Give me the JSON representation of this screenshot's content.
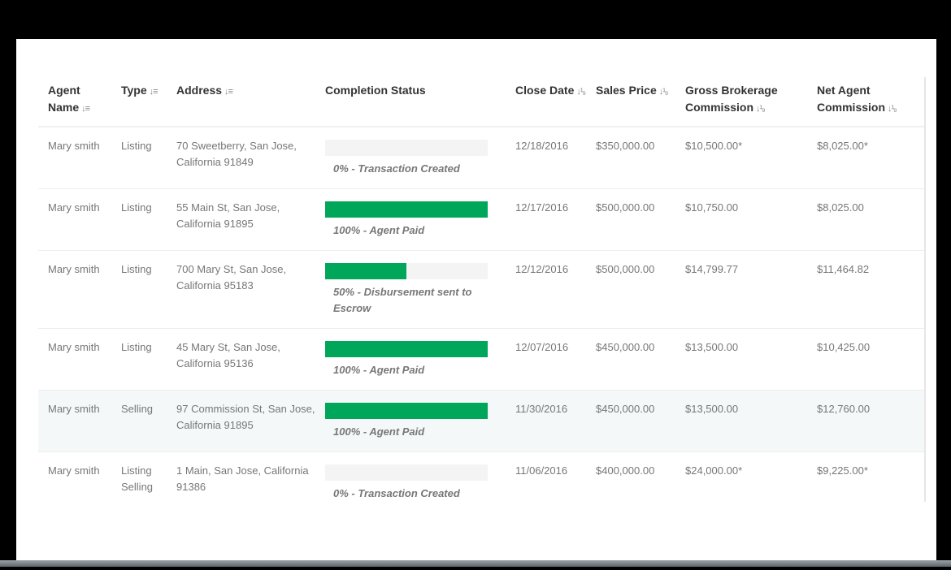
{
  "columns": [
    {
      "label": "Agent Name",
      "sort_icon": "sort-alpha-icon",
      "sort_glyph": "↓≡"
    },
    {
      "label": "Type",
      "sort_icon": "sort-alpha-icon",
      "sort_glyph": "↓≡"
    },
    {
      "label": "Address",
      "sort_icon": "sort-alpha-icon",
      "sort_glyph": "↓≡"
    },
    {
      "label": "Completion Status",
      "sort_icon": "",
      "sort_glyph": ""
    },
    {
      "label": "Close Date",
      "sort_icon": "sort-numeric-icon",
      "sort_glyph": "↓¹₉"
    },
    {
      "label": "Sales Price",
      "sort_icon": "sort-numeric-icon",
      "sort_glyph": "↓¹₉"
    },
    {
      "label": "Gross Brokerage Commission",
      "sort_icon": "sort-numeric-icon",
      "sort_glyph": "↓¹₉"
    },
    {
      "label": "Net Agent Commission",
      "sort_icon": "sort-numeric-icon",
      "sort_glyph": "↓¹₉"
    }
  ],
  "colors": {
    "progress": "#00a65a",
    "track": "#f4f4f4",
    "highlight": "#f5f8f8"
  },
  "rows": [
    {
      "agent": "Mary smith",
      "type": "Listing",
      "address": "70 Sweetberry, San Jose, California 91849",
      "progress": 0,
      "status": "0% - Transaction Created",
      "close_date": "12/18/2016",
      "sales_price": "$350,000.00",
      "gross": "$10,500.00*",
      "net": "$8,025.00*"
    },
    {
      "agent": "Mary smith",
      "type": "Listing",
      "address": "55 Main St, San Jose, California 91895",
      "progress": 100,
      "status": "100% - Agent Paid",
      "close_date": "12/17/2016",
      "sales_price": "$500,000.00",
      "gross": "$10,750.00",
      "net": "$8,025.00"
    },
    {
      "agent": "Mary smith",
      "type": "Listing",
      "address": "700 Mary St, San Jose, California 95183",
      "progress": 50,
      "status": "50% - Disbursement sent to Escrow",
      "close_date": "12/12/2016",
      "sales_price": "$500,000.00",
      "gross": "$14,799.77",
      "net": "$11,464.82"
    },
    {
      "agent": "Mary smith",
      "type": "Listing",
      "address": "45 Mary St, San Jose, California 95136",
      "progress": 100,
      "status": "100% - Agent Paid",
      "close_date": "12/07/2016",
      "sales_price": "$450,000.00",
      "gross": "$13,500.00",
      "net": "$10,425.00"
    },
    {
      "agent": "Mary smith",
      "type": "Selling",
      "address": "97 Commission St, San Jose, California 91895",
      "progress": 100,
      "status": "100% - Agent Paid",
      "close_date": "11/30/2016",
      "sales_price": "$450,000.00",
      "gross": "$13,500.00",
      "net": "$12,760.00",
      "highlighted": true
    },
    {
      "agent": "Mary smith",
      "type": "Listing Selling",
      "address": "1 Main, San Jose, California 91386",
      "progress": 0,
      "status": "0% - Transaction Created",
      "close_date": "11/06/2016",
      "sales_price": "$400,000.00",
      "gross": "$24,000.00*",
      "net": "$9,225.00*"
    }
  ]
}
